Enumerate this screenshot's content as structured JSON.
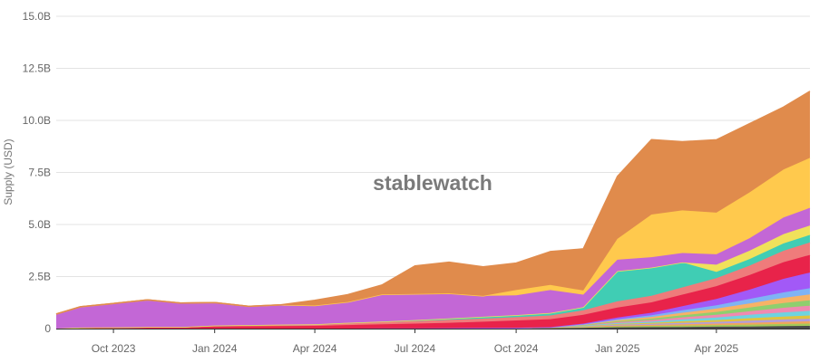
{
  "chart_data": {
    "type": "area",
    "stacked": true,
    "watermark": "stablewatch",
    "ylabel": "Supply (USD)",
    "ylim": [
      0,
      15000000000
    ],
    "xlim": [
      "2023-08-10",
      "2025-06-25"
    ],
    "grid": true,
    "legend": "none",
    "y_ticks": [
      {
        "value": 0,
        "label": "0"
      },
      {
        "value": 2500000000,
        "label": "2.5B"
      },
      {
        "value": 5000000000,
        "label": "5.0B"
      },
      {
        "value": 7500000000,
        "label": "7.5B"
      },
      {
        "value": 10000000000,
        "label": "10.0B"
      },
      {
        "value": 12500000000,
        "label": "12.5B"
      },
      {
        "value": 15000000000,
        "label": "15.0B"
      }
    ],
    "x_ticks": [
      {
        "date": "2023-10-01",
        "label": "Oct 2023"
      },
      {
        "date": "2024-01-01",
        "label": "Jan 2024"
      },
      {
        "date": "2024-04-01",
        "label": "Apr 2024"
      },
      {
        "date": "2024-07-01",
        "label": "Jul 2024"
      },
      {
        "date": "2024-10-01",
        "label": "Oct 2024"
      },
      {
        "date": "2025-01-01",
        "label": "Jan 2025"
      },
      {
        "date": "2025-04-01",
        "label": "Apr 2025"
      }
    ],
    "x": [
      "2023-08-10",
      "2023-09-01",
      "2023-10-01",
      "2023-11-01",
      "2023-12-01",
      "2024-01-01",
      "2024-02-01",
      "2024-03-01",
      "2024-04-01",
      "2024-05-01",
      "2024-06-01",
      "2024-07-01",
      "2024-08-01",
      "2024-09-01",
      "2024-10-01",
      "2024-11-01",
      "2024-12-01",
      "2025-01-01",
      "2025-02-01",
      "2025-03-01",
      "2025-04-01",
      "2025-05-01",
      "2025-06-01",
      "2025-06-25"
    ],
    "series": [
      {
        "color": "#4a4a4a",
        "values": [
          0,
          0,
          0,
          0,
          0,
          0,
          0,
          0,
          0,
          0,
          0.01,
          0.01,
          0.01,
          0.02,
          0.02,
          0.03,
          0.04,
          0.06,
          0.07,
          0.08,
          0.09,
          0.1,
          0.12,
          0.13
        ]
      },
      {
        "color": "#a3c95b",
        "values": [
          0,
          0,
          0,
          0,
          0,
          0,
          0,
          0,
          0,
          0,
          0,
          0,
          0.01,
          0.01,
          0.01,
          0.02,
          0.03,
          0.05,
          0.06,
          0.07,
          0.08,
          0.09,
          0.1,
          0.11
        ]
      },
      {
        "color": "#f2a65a",
        "values": [
          0,
          0,
          0,
          0,
          0,
          0,
          0,
          0,
          0,
          0,
          0,
          0,
          0,
          0,
          0.01,
          0.01,
          0.02,
          0.04,
          0.05,
          0.06,
          0.07,
          0.09,
          0.1,
          0.11
        ]
      },
      {
        "color": "#b39ddb",
        "values": [
          0,
          0,
          0,
          0,
          0,
          0,
          0,
          0,
          0,
          0,
          0,
          0,
          0,
          0,
          0,
          0.01,
          0.02,
          0.04,
          0.05,
          0.07,
          0.08,
          0.1,
          0.12,
          0.13
        ]
      },
      {
        "color": "#e0c341",
        "values": [
          0,
          0,
          0,
          0,
          0,
          0,
          0,
          0,
          0,
          0,
          0,
          0,
          0,
          0,
          0,
          0,
          0.01,
          0.03,
          0.05,
          0.07,
          0.09,
          0.12,
          0.14,
          0.15
        ]
      },
      {
        "color": "#6fd3e0",
        "values": [
          0,
          0,
          0,
          0,
          0,
          0,
          0,
          0,
          0,
          0,
          0,
          0,
          0,
          0,
          0,
          0,
          0.02,
          0.04,
          0.06,
          0.09,
          0.12,
          0.16,
          0.2,
          0.22
        ]
      },
      {
        "color": "#f08ab0",
        "values": [
          0,
          0,
          0,
          0,
          0,
          0,
          0,
          0,
          0,
          0,
          0,
          0,
          0,
          0,
          0,
          0,
          0.02,
          0.05,
          0.07,
          0.1,
          0.13,
          0.17,
          0.22,
          0.25
        ]
      },
      {
        "color": "#8fcf6e",
        "values": [
          0,
          0,
          0,
          0,
          0,
          0,
          0,
          0,
          0,
          0,
          0,
          0,
          0,
          0,
          0,
          0,
          0.01,
          0.04,
          0.07,
          0.1,
          0.14,
          0.18,
          0.23,
          0.26
        ]
      },
      {
        "color": "#f7b267",
        "values": [
          0,
          0,
          0,
          0,
          0,
          0,
          0,
          0,
          0,
          0,
          0,
          0,
          0,
          0,
          0,
          0,
          0.02,
          0.05,
          0.08,
          0.12,
          0.16,
          0.2,
          0.25,
          0.28
        ]
      },
      {
        "color": "#7fb3f5",
        "values": [
          0,
          0,
          0,
          0,
          0,
          0,
          0,
          0,
          0,
          0,
          0,
          0,
          0,
          0,
          0,
          0,
          0.02,
          0.05,
          0.08,
          0.12,
          0.16,
          0.21,
          0.26,
          0.3
        ]
      },
      {
        "color": "#a259f7",
        "values": [
          0,
          0,
          0,
          0,
          0,
          0,
          0,
          0,
          0,
          0,
          0,
          0,
          0,
          0,
          0,
          0,
          0.03,
          0.08,
          0.12,
          0.2,
          0.3,
          0.45,
          0.65,
          0.75
        ]
      },
      {
        "color": "#e8234a",
        "values": [
          0,
          0.04,
          0.04,
          0.05,
          0.05,
          0.1,
          0.11,
          0.12,
          0.13,
          0.17,
          0.2,
          0.23,
          0.26,
          0.3,
          0.35,
          0.38,
          0.42,
          0.48,
          0.5,
          0.55,
          0.62,
          0.7,
          0.8,
          0.85
        ]
      },
      {
        "color": "#ef7b7b",
        "values": [
          0,
          0.01,
          0.02,
          0.03,
          0.03,
          0.05,
          0.06,
          0.07,
          0.08,
          0.09,
          0.1,
          0.12,
          0.14,
          0.15,
          0.16,
          0.18,
          0.22,
          0.3,
          0.32,
          0.35,
          0.38,
          0.45,
          0.55,
          0.6
        ]
      },
      {
        "color": "#40cdb4",
        "values": [
          0,
          0,
          0,
          0,
          0,
          0,
          0,
          0,
          0,
          0.02,
          0.03,
          0.05,
          0.07,
          0.09,
          0.1,
          0.12,
          0.15,
          1.45,
          1.35,
          1.2,
          0.3,
          0.32,
          0.35,
          0.36
        ]
      },
      {
        "color": "#f0e15b",
        "values": [
          0,
          0,
          0,
          0,
          0,
          0,
          0,
          0,
          0,
          0,
          0,
          0,
          0,
          0,
          0,
          0,
          0,
          0,
          0,
          0,
          0.35,
          0.4,
          0.45,
          0.45
        ]
      },
      {
        "color": "#c367d6",
        "values": [
          0.7,
          1.0,
          1.15,
          1.3,
          1.15,
          1.1,
          0.9,
          0.95,
          0.9,
          1.0,
          1.3,
          1.25,
          1.2,
          1.0,
          0.95,
          1.1,
          0.6,
          0.55,
          0.5,
          0.45,
          0.5,
          0.6,
          0.8,
          0.85
        ]
      },
      {
        "color": "#ffc94d",
        "values": [
          0,
          0,
          0,
          0,
          0,
          0,
          0,
          0,
          0,
          0,
          0,
          0,
          0,
          0,
          0.25,
          0.25,
          0.2,
          1.0,
          2.05,
          2.05,
          2.0,
          2.2,
          2.3,
          2.4
        ]
      },
      {
        "color": "#e08b4c",
        "values": [
          0,
          0,
          0,
          0,
          0,
          0,
          0,
          0,
          0.25,
          0.35,
          0.45,
          1.35,
          1.5,
          1.4,
          1.3,
          1.6,
          2.0,
          3.0,
          3.6,
          3.3,
          3.5,
          3.3,
          3.0,
          3.2
        ]
      }
    ]
  }
}
